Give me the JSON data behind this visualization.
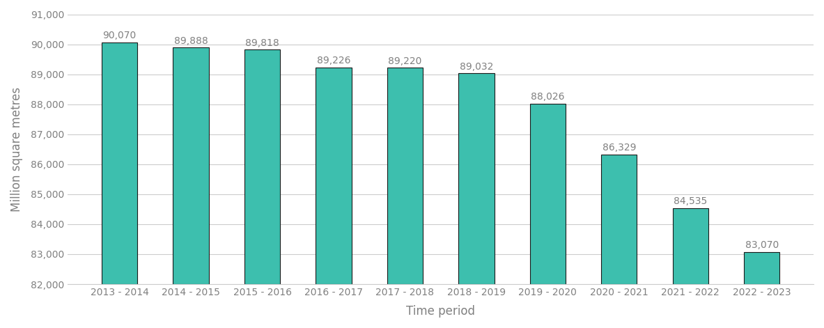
{
  "categories": [
    "2013 - 2014",
    "2014 - 2015",
    "2015 - 2016",
    "2016 - 2017",
    "2017 - 2018",
    "2018 - 2019",
    "2019 - 2020",
    "2020 - 2021",
    "2021 - 2022",
    "2022 - 2023"
  ],
  "values": [
    90070,
    89888,
    89818,
    89226,
    89220,
    89032,
    88026,
    86329,
    84535,
    83070
  ],
  "bar_color": "#3DBFAE",
  "bar_edge_color": "#1a1a1a",
  "xlabel": "Time period",
  "ylabel": "Million square metres",
  "ylim": [
    82000,
    91000
  ],
  "ybase": 82000,
  "yticks": [
    82000,
    83000,
    84000,
    85000,
    86000,
    87000,
    88000,
    89000,
    90000,
    91000
  ],
  "label_fontsize": 10,
  "tick_fontsize": 10,
  "axis_label_fontsize": 12,
  "background_color": "#ffffff",
  "grid_color": "#cccccc",
  "text_color": "#808080"
}
